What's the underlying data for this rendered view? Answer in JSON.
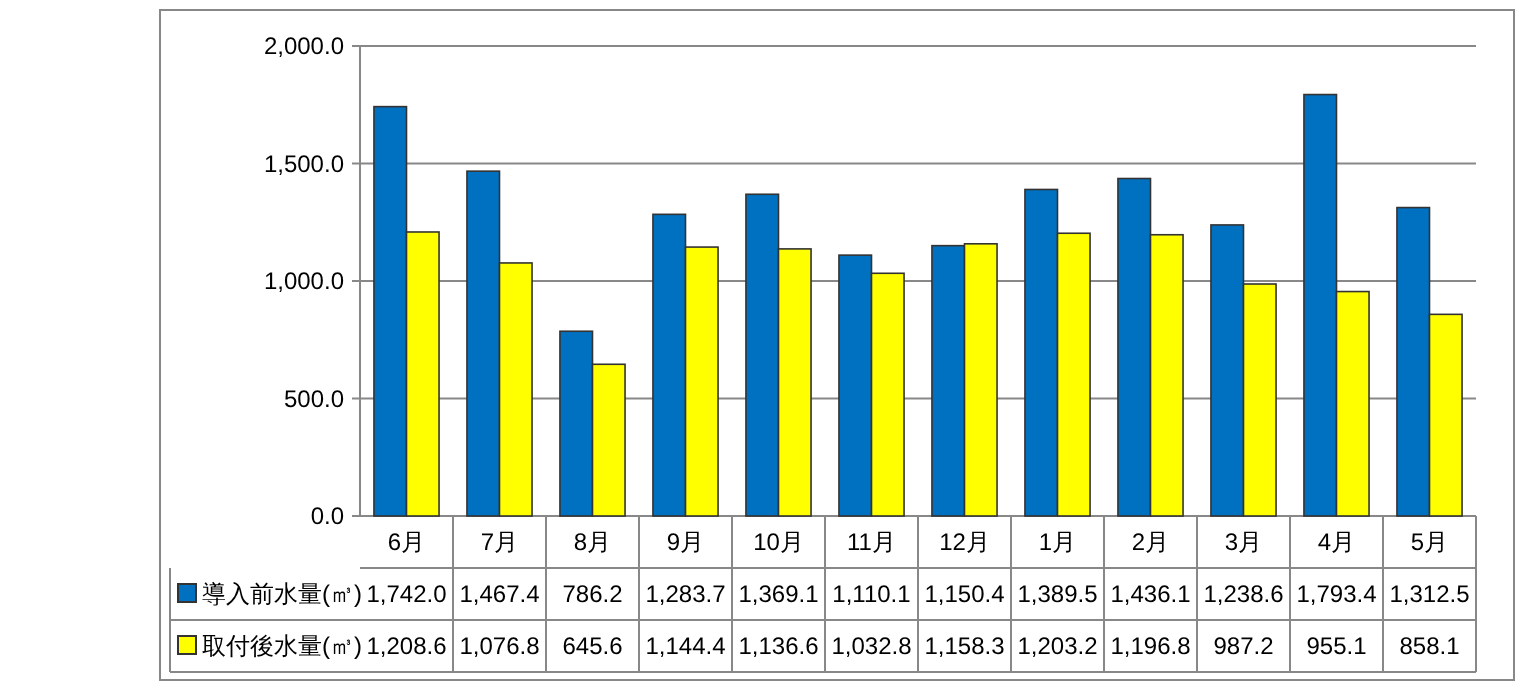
{
  "chart_data": {
    "type": "bar",
    "categories": [
      "6月",
      "7月",
      "8月",
      "9月",
      "10月",
      "11月",
      "12月",
      "1月",
      "2月",
      "3月",
      "4月",
      "5月"
    ],
    "series": [
      {
        "name": "導入前水量(㎥)",
        "color": "#0070c0",
        "values": [
          1742.0,
          1467.4,
          786.2,
          1283.7,
          1369.1,
          1110.1,
          1150.4,
          1389.5,
          1436.1,
          1238.6,
          1793.4,
          1312.5
        ],
        "value_labels": [
          "1,742.0",
          "1,467.4",
          "786.2",
          "1,283.7",
          "1,369.1",
          "1,110.1",
          "1,150.4",
          "1,389.5",
          "1,436.1",
          "1,238.6",
          "1,793.4",
          "1,312.5"
        ]
      },
      {
        "name": "取付後水量(㎥)",
        "color": "#ffff00",
        "values": [
          1208.6,
          1076.8,
          645.6,
          1144.4,
          1136.6,
          1032.8,
          1158.3,
          1203.2,
          1196.8,
          987.2,
          955.1,
          858.1
        ],
        "value_labels": [
          "1,208.6",
          "1,076.8",
          "645.6",
          "1,144.4",
          "1,136.6",
          "1,032.8",
          "1,158.3",
          "1,203.2",
          "1,196.8",
          "987.2",
          "955.1",
          "858.1"
        ]
      }
    ],
    "ylim": [
      0,
      2000
    ],
    "yticks": [
      {
        "value": 0,
        "label": "0.0"
      },
      {
        "value": 500,
        "label": "500.0"
      },
      {
        "value": 1000,
        "label": "1,000.0"
      },
      {
        "value": 1500,
        "label": "1,500.0"
      },
      {
        "value": 2000,
        "label": "2,000.0"
      }
    ],
    "grid": "y",
    "legend": "bottom"
  }
}
